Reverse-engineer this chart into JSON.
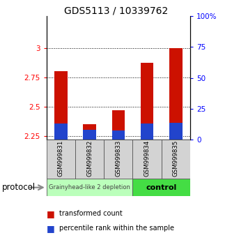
{
  "title": "GDS5113 / 10339762",
  "samples": [
    "GSM999831",
    "GSM999832",
    "GSM999833",
    "GSM999834",
    "GSM999835"
  ],
  "red_tops": [
    2.8,
    2.35,
    2.47,
    2.87,
    3.0
  ],
  "blue_tops": [
    2.355,
    2.305,
    2.295,
    2.355,
    2.365
  ],
  "bar_base": 2.22,
  "ylim_left": [
    2.22,
    3.27
  ],
  "ylim_right": [
    0,
    100
  ],
  "yticks_left": [
    2.25,
    2.5,
    2.75,
    3.0
  ],
  "ytick_labels_left": [
    "2.25",
    "2.5",
    "2.75",
    "3"
  ],
  "yticks_right": [
    0,
    25,
    50,
    75,
    100
  ],
  "ytick_labels_right": [
    "0",
    "25",
    "50",
    "75",
    "100%"
  ],
  "groups": [
    {
      "label": "Grainyhead-like 2 depletion",
      "n_samples": 3,
      "color": "#bbffbb"
    },
    {
      "label": "control",
      "n_samples": 2,
      "color": "#44dd44"
    }
  ],
  "protocol_label": "protocol",
  "red_color": "#cc1100",
  "blue_color": "#2244cc",
  "bar_width": 0.45,
  "legend_items": [
    "transformed count",
    "percentile rank within the sample"
  ],
  "legend_colors": [
    "#cc1100",
    "#2244cc"
  ]
}
